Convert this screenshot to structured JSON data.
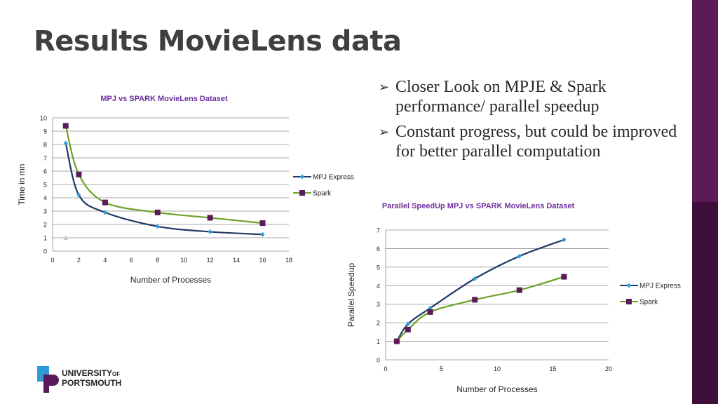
{
  "slide": {
    "title": "Results MovieLens data",
    "bullets": [
      "Closer Look on MPJE & Spark performance/ parallel speedup",
      "Constant progress, but could be improved for better parallel computation"
    ]
  },
  "logo": {
    "line1": "UNIVERSITY",
    "of": "OF",
    "line2": "PORTSMOUTH"
  },
  "chart_data": [
    {
      "type": "line",
      "title": "MPJ vs SPARK MovieLens Dataset",
      "xlabel": "Number of Processes",
      "ylabel": "Time in mn",
      "xlim": [
        0,
        18
      ],
      "ylim": [
        0,
        10
      ],
      "xticks": [
        0,
        2,
        4,
        6,
        8,
        10,
        12,
        14,
        16,
        18
      ],
      "yticks": [
        0,
        1,
        2,
        3,
        4,
        5,
        6,
        7,
        8,
        9,
        10
      ],
      "grid": true,
      "legend": "right",
      "series": [
        {
          "name": "MPJ Express",
          "color": "#1f3864",
          "marker_color": "#2e9bd6",
          "marker": "diamond",
          "points": [
            [
              1,
              8.1
            ],
            [
              2,
              4.2
            ],
            [
              4,
              2.9
            ],
            [
              8,
              1.85
            ],
            [
              12,
              1.45
            ],
            [
              16,
              1.25
            ]
          ]
        },
        {
          "name": "Spark",
          "color": "#6aa329",
          "marker_color": "#5b1a5a",
          "marker": "square",
          "points": [
            [
              1,
              9.4
            ],
            [
              2,
              5.75
            ],
            [
              4,
              3.65
            ],
            [
              8,
              2.9
            ],
            [
              12,
              2.5
            ],
            [
              16,
              2.1
            ]
          ]
        }
      ],
      "extra_point": {
        "x": 1,
        "y": 1,
        "color": "#c8c8c8"
      }
    },
    {
      "type": "line",
      "title": "Parallel SpeedUp MPJ vs SPARK MovieLens Dataset",
      "xlabel": "Number of Processes",
      "ylabel": "Parallel Speedup",
      "xlim": [
        0,
        20
      ],
      "ylim": [
        0,
        7
      ],
      "xticks": [
        0,
        5,
        10,
        15,
        20
      ],
      "yticks": [
        0,
        1,
        2,
        3,
        4,
        5,
        6,
        7
      ],
      "grid": true,
      "legend": "right",
      "series": [
        {
          "name": "MPJ Express",
          "color": "#1f3864",
          "marker_color": "#2e9bd6",
          "marker": "diamond",
          "points": [
            [
              1,
              1
            ],
            [
              2,
              1.93
            ],
            [
              4,
              2.79
            ],
            [
              8,
              4.38
            ],
            [
              12,
              5.59
            ],
            [
              16,
              6.48
            ]
          ]
        },
        {
          "name": "Spark",
          "color": "#6aa329",
          "marker_color": "#5b1a5a",
          "marker": "square",
          "points": [
            [
              1,
              1
            ],
            [
              2,
              1.63
            ],
            [
              4,
              2.58
            ],
            [
              8,
              3.24
            ],
            [
              12,
              3.76
            ],
            [
              16,
              4.48
            ]
          ]
        }
      ]
    }
  ]
}
